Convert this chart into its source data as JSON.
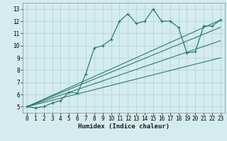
{
  "xlabel": "Humidex (Indice chaleur)",
  "bg_color": "#d4ecee",
  "grid_color": "#b8d4d8",
  "line_color": "#2a7d6e",
  "xlim": [
    -0.5,
    23.5
  ],
  "ylim": [
    4.5,
    13.5
  ],
  "xticks": [
    0,
    1,
    2,
    3,
    4,
    5,
    6,
    7,
    8,
    9,
    10,
    11,
    12,
    13,
    14,
    15,
    16,
    17,
    18,
    19,
    20,
    21,
    22,
    23
  ],
  "yticks": [
    5,
    6,
    7,
    8,
    9,
    10,
    11,
    12,
    13
  ],
  "series1_x": [
    0,
    1,
    2,
    3,
    4,
    5,
    6,
    7,
    8,
    9,
    10,
    11,
    12,
    13,
    14,
    15,
    16,
    17,
    18,
    19,
    20,
    21,
    22,
    23
  ],
  "series1_y": [
    5.0,
    4.9,
    5.0,
    5.3,
    5.5,
    6.2,
    6.1,
    7.7,
    9.8,
    10.0,
    10.5,
    12.0,
    12.6,
    11.8,
    12.0,
    13.0,
    12.0,
    12.0,
    11.5,
    9.4,
    9.5,
    11.6,
    11.6,
    12.1
  ],
  "series2_x": [
    0,
    23
  ],
  "series2_y": [
    5.0,
    12.1
  ],
  "series3_x": [
    0,
    23
  ],
  "series3_y": [
    5.0,
    11.5
  ],
  "series4_x": [
    0,
    23
  ],
  "series4_y": [
    5.0,
    10.4
  ],
  "series5_x": [
    0,
    23
  ],
  "series5_y": [
    5.0,
    9.0
  ],
  "tick_fontsize": 5.5,
  "xlabel_fontsize": 6.5,
  "lw_main": 0.9,
  "lw_straight": 0.8
}
